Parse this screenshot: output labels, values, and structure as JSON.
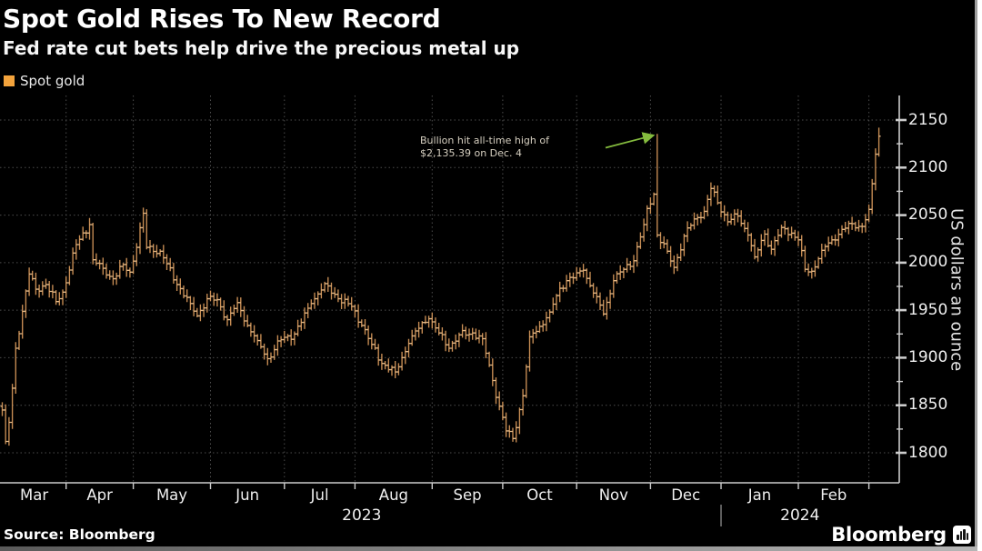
{
  "header": {
    "title": "Spot Gold Rises To New Record",
    "subtitle": "Fed rate cut bets help drive the precious metal up"
  },
  "legend": {
    "label": "Spot gold",
    "swatch_color": "#f3a33c"
  },
  "annotation": {
    "line1": "Bullion hit all-time high of",
    "line2": "$2,135.39 on Dec. 4"
  },
  "footer": {
    "source": "Source: Bloomberg",
    "brand": "Bloomberg"
  },
  "chart_data": {
    "type": "ohlc",
    "title": "Spot Gold Rises To New Record",
    "series_name": "Spot gold",
    "xlabel": "",
    "ylabel": "US dollars an ounce",
    "ylim": [
      1768,
      2176
    ],
    "yticks": [
      1800,
      1850,
      1900,
      1950,
      2000,
      2050,
      2100,
      2150
    ],
    "y_minor_step": 25,
    "grid": true,
    "bar_color": "#c98e54",
    "bar_tick_color": "#e3b886",
    "grid_color": "#4c4c4c",
    "axis_color": "#cccccc",
    "arrow_color": "#84bb3e",
    "n_bars": 262,
    "x_months": [
      {
        "label": "Mar",
        "start": 0
      },
      {
        "label": "Apr",
        "start": 19
      },
      {
        "label": "May",
        "start": 39
      },
      {
        "label": "Jun",
        "start": 62
      },
      {
        "label": "Jul",
        "start": 84
      },
      {
        "label": "Aug",
        "start": 105
      },
      {
        "label": "Sep",
        "start": 128
      },
      {
        "label": "Oct",
        "start": 149
      },
      {
        "label": "Nov",
        "start": 171
      },
      {
        "label": "Dec",
        "start": 193
      },
      {
        "label": "Jan",
        "start": 214
      },
      {
        "label": "Feb",
        "start": 237
      }
    ],
    "final_boundary_index": 258,
    "years": [
      {
        "label": "2023",
        "from": 0,
        "to": 214
      },
      {
        "label": "2024",
        "from": 214,
        "to": 261
      }
    ],
    "year_separator_index": 214,
    "record_high": {
      "value": 2135.39,
      "date": "Dec. 4",
      "bar_index": 195
    },
    "anchors": [
      [
        0,
        1845
      ],
      [
        1,
        1812
      ],
      [
        2,
        1832
      ],
      [
        3,
        1868
      ],
      [
        4,
        1910
      ],
      [
        8,
        1988
      ],
      [
        10,
        1972
      ],
      [
        13,
        1977
      ],
      [
        16,
        1959
      ],
      [
        18,
        1969
      ],
      [
        22,
        2019
      ],
      [
        26,
        2040
      ],
      [
        27,
        2003
      ],
      [
        30,
        1994
      ],
      [
        33,
        1983
      ],
      [
        36,
        1998
      ],
      [
        38,
        1990
      ],
      [
        40,
        2016
      ],
      [
        42,
        2052
      ],
      [
        43,
        2016
      ],
      [
        47,
        2012
      ],
      [
        52,
        1977
      ],
      [
        56,
        1957
      ],
      [
        58,
        1944
      ],
      [
        61,
        1962
      ],
      [
        64,
        1961
      ],
      [
        67,
        1940
      ],
      [
        70,
        1958
      ],
      [
        73,
        1934
      ],
      [
        76,
        1918
      ],
      [
        79,
        1899
      ],
      [
        83,
        1919
      ],
      [
        87,
        1925
      ],
      [
        92,
        1957
      ],
      [
        96,
        1978
      ],
      [
        100,
        1962
      ],
      [
        104,
        1954
      ],
      [
        107,
        1934
      ],
      [
        110,
        1914
      ],
      [
        113,
        1894
      ],
      [
        117,
        1885
      ],
      [
        121,
        1915
      ],
      [
        125,
        1937
      ],
      [
        127,
        1941
      ],
      [
        130,
        1926
      ],
      [
        133,
        1910
      ],
      [
        136,
        1924
      ],
      [
        140,
        1926
      ],
      [
        143,
        1920
      ],
      [
        146,
        1876
      ],
      [
        148,
        1849
      ],
      [
        150,
        1823
      ],
      [
        152,
        1815
      ],
      [
        155,
        1860
      ],
      [
        157,
        1922
      ],
      [
        160,
        1933
      ],
      [
        163,
        1948
      ],
      [
        166,
        1973
      ],
      [
        168,
        1981
      ],
      [
        170,
        1984
      ],
      [
        173,
        1992
      ],
      [
        176,
        1968
      ],
      [
        179,
        1946
      ],
      [
        182,
        1981
      ],
      [
        185,
        1993
      ],
      [
        188,
        2002
      ],
      [
        191,
        2040
      ],
      [
        192,
        2057
      ],
      [
        194,
        2072
      ],
      [
        195,
        2029,
        2135.39
      ],
      [
        198,
        2012
      ],
      [
        200,
        1995
      ],
      [
        203,
        2028
      ],
      [
        206,
        2046
      ],
      [
        209,
        2054
      ],
      [
        211,
        2078
      ],
      [
        213,
        2063
      ],
      [
        216,
        2043
      ],
      [
        219,
        2049
      ],
      [
        222,
        2029
      ],
      [
        224,
        2006
      ],
      [
        227,
        2030
      ],
      [
        229,
        2014
      ],
      [
        232,
        2037
      ],
      [
        235,
        2031
      ],
      [
        237,
        2024
      ],
      [
        239,
        1993
      ],
      [
        241,
        1991
      ],
      [
        244,
        2013
      ],
      [
        247,
        2024
      ],
      [
        250,
        2035
      ],
      [
        253,
        2041
      ],
      [
        256,
        2038
      ],
      [
        258,
        2056
      ],
      [
        259,
        2083
      ],
      [
        260,
        2114
      ],
      [
        261,
        2133,
        2142
      ]
    ]
  }
}
